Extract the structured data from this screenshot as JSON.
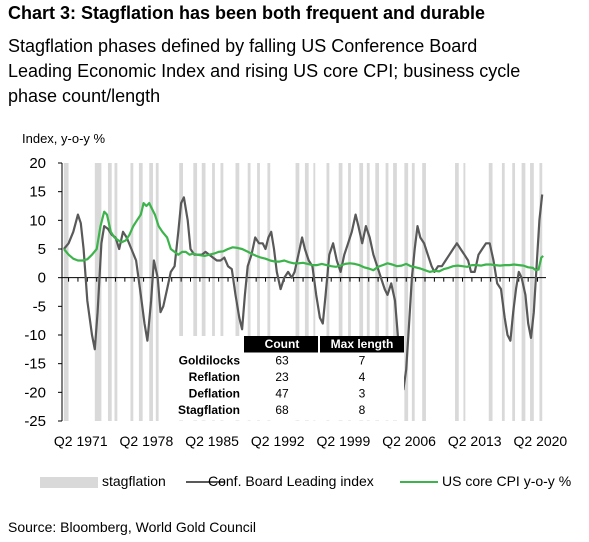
{
  "chart_data": {
    "type": "line",
    "title": "Chart 3: Stagflation has been both frequent and durable",
    "subtitle_lines": [
      "Stagflation phases defined by falling US Conference Board",
      "Leading Economic Index and rising US core CPI; business cycle",
      "phase count/length"
    ],
    "ylabel": "Index, y-o-y %",
    "ylim": [
      -25,
      20
    ],
    "yticks": [
      20,
      15,
      10,
      5,
      0,
      -5,
      -10,
      -15,
      -20,
      -25
    ],
    "xlim": [
      1969.3,
      2020.9
    ],
    "xtick_labels": [
      "Q2 1971",
      "Q2 1978",
      "Q2 1985",
      "Q2 1992",
      "Q2 1999",
      "Q2 2006",
      "Q2 2013",
      "Q2 2020"
    ],
    "xticks": [
      1971.3,
      1978.3,
      1985.3,
      1992.3,
      1999.3,
      2006.3,
      2013.3,
      2020.3
    ],
    "grid": false,
    "legend_position": "bottom",
    "legend": [
      {
        "label": "stagflation",
        "type": "band",
        "color": "#d9d9d9"
      },
      {
        "label": "Conf. Board Leading index",
        "type": "line",
        "color": "#595959"
      },
      {
        "label": "US core CPI y-o-y %",
        "type": "line",
        "color": "#3cb44b"
      }
    ],
    "stagflation_periods": [
      [
        1969.5,
        1970.0
      ],
      [
        1972.8,
        1973.5
      ],
      [
        1974.2,
        1974.6
      ],
      [
        1974.9,
        1975.2
      ],
      [
        1976.6,
        1976.9
      ],
      [
        1977.5,
        1977.9
      ],
      [
        1978.6,
        1979.0
      ],
      [
        1979.3,
        1979.6
      ],
      [
        1981.8,
        1982.2
      ],
      [
        1983.3,
        1983.7
      ],
      [
        1984.2,
        1984.6
      ],
      [
        1985.3,
        1985.6
      ],
      [
        1986.2,
        1986.5
      ],
      [
        1987.8,
        1988.2
      ],
      [
        1989.1,
        1989.4
      ],
      [
        1990.1,
        1990.4
      ],
      [
        1991.2,
        1991.5
      ],
      [
        1994.2,
        1994.6
      ],
      [
        1995.2,
        1995.6
      ],
      [
        1996.1,
        1996.3
      ],
      [
        1997.5,
        1997.8
      ],
      [
        1998.8,
        1999.2
      ],
      [
        1999.8,
        2000.1
      ],
      [
        2001.0,
        2001.4
      ],
      [
        2001.8,
        2002.1
      ],
      [
        2002.7,
        2003.1
      ],
      [
        2003.8,
        2004.1
      ],
      [
        2004.6,
        2005.0
      ],
      [
        2005.8,
        2006.2
      ],
      [
        2006.6,
        2006.9
      ],
      [
        2007.7,
        2008.1
      ],
      [
        2011.2,
        2011.6
      ],
      [
        2012.1,
        2012.3
      ],
      [
        2014.8,
        2015.2
      ],
      [
        2016.2,
        2016.5
      ],
      [
        2017.3,
        2017.6
      ],
      [
        2018.3,
        2018.7
      ],
      [
        2019.2,
        2019.6
      ],
      [
        2020.2,
        2020.5
      ]
    ],
    "series": [
      {
        "name": "Conf. Board Leading index",
        "color": "#595959",
        "points": [
          [
            1969.5,
            5
          ],
          [
            1970.0,
            6
          ],
          [
            1970.5,
            8
          ],
          [
            1971.0,
            11
          ],
          [
            1971.3,
            9.5
          ],
          [
            1971.6,
            5
          ],
          [
            1972.0,
            -4
          ],
          [
            1972.5,
            -10
          ],
          [
            1972.8,
            -12.5
          ],
          [
            1973.1,
            -6
          ],
          [
            1973.5,
            6
          ],
          [
            1973.8,
            9
          ],
          [
            1974.2,
            8.5
          ],
          [
            1974.6,
            7.5
          ],
          [
            1975.0,
            7
          ],
          [
            1975.4,
            5
          ],
          [
            1975.8,
            8
          ],
          [
            1976.2,
            7
          ],
          [
            1976.7,
            5
          ],
          [
            1977.2,
            3
          ],
          [
            1977.7,
            -3
          ],
          [
            1978.1,
            -8
          ],
          [
            1978.4,
            -11
          ],
          [
            1978.8,
            -4
          ],
          [
            1979.1,
            3
          ],
          [
            1979.5,
            0
          ],
          [
            1979.8,
            -6
          ],
          [
            1980.1,
            -5
          ],
          [
            1980.5,
            -2
          ],
          [
            1980.9,
            1
          ],
          [
            1981.3,
            2
          ],
          [
            1981.7,
            8
          ],
          [
            1982.0,
            13
          ],
          [
            1982.3,
            14
          ],
          [
            1982.7,
            10
          ],
          [
            1983.0,
            5
          ],
          [
            1983.4,
            4
          ],
          [
            1983.8,
            4
          ],
          [
            1984.2,
            4
          ],
          [
            1984.6,
            4.5
          ],
          [
            1985.0,
            4
          ],
          [
            1985.4,
            3.5
          ],
          [
            1985.8,
            3
          ],
          [
            1986.2,
            3
          ],
          [
            1986.6,
            3.5
          ],
          [
            1987.0,
            2
          ],
          [
            1987.4,
            1.5
          ],
          [
            1987.8,
            -3
          ],
          [
            1988.2,
            -7
          ],
          [
            1988.5,
            -9
          ],
          [
            1988.8,
            -3
          ],
          [
            1989.1,
            2
          ],
          [
            1989.5,
            4
          ],
          [
            1989.9,
            7
          ],
          [
            1990.3,
            6
          ],
          [
            1990.7,
            6
          ],
          [
            1991.0,
            5
          ],
          [
            1991.3,
            7
          ],
          [
            1991.6,
            8
          ],
          [
            1991.9,
            5
          ],
          [
            1992.2,
            1
          ],
          [
            1992.6,
            -2
          ],
          [
            1993.0,
            0
          ],
          [
            1993.4,
            1
          ],
          [
            1993.8,
            0
          ],
          [
            1994.1,
            1
          ],
          [
            1994.5,
            4
          ],
          [
            1994.9,
            7
          ],
          [
            1995.2,
            5
          ],
          [
            1995.6,
            3
          ],
          [
            1996.0,
            2
          ],
          [
            1996.4,
            -3
          ],
          [
            1996.8,
            -7
          ],
          [
            1997.1,
            -8
          ],
          [
            1997.4,
            -3
          ],
          [
            1997.8,
            4
          ],
          [
            1998.2,
            6
          ],
          [
            1998.6,
            3
          ],
          [
            1999.0,
            1
          ],
          [
            1999.4,
            4
          ],
          [
            1999.8,
            6
          ],
          [
            2000.2,
            8
          ],
          [
            2000.6,
            11
          ],
          [
            2000.9,
            9
          ],
          [
            2001.3,
            6
          ],
          [
            2001.7,
            9
          ],
          [
            2002.1,
            7
          ],
          [
            2002.5,
            4
          ],
          [
            2002.9,
            2
          ],
          [
            2003.3,
            0
          ],
          [
            2003.7,
            -2
          ],
          [
            2004.0,
            -3
          ],
          [
            2004.4,
            -1
          ],
          [
            2004.8,
            -4
          ],
          [
            2005.1,
            -10
          ],
          [
            2005.4,
            -17
          ],
          [
            2005.7,
            -19.5
          ],
          [
            2006.0,
            -16
          ],
          [
            2006.3,
            -8
          ],
          [
            2006.6,
            0
          ],
          [
            2006.9,
            5
          ],
          [
            2007.2,
            9
          ],
          [
            2007.5,
            7
          ],
          [
            2007.9,
            6
          ],
          [
            2008.3,
            4
          ],
          [
            2008.7,
            2
          ],
          [
            2009.0,
            1
          ],
          [
            2009.4,
            2
          ],
          [
            2009.8,
            2
          ],
          [
            2010.2,
            3
          ],
          [
            2010.6,
            4
          ],
          [
            2011.0,
            5
          ],
          [
            2011.4,
            6
          ],
          [
            2011.8,
            5
          ],
          [
            2012.2,
            4
          ],
          [
            2012.6,
            3
          ],
          [
            2012.9,
            1
          ],
          [
            2013.3,
            1
          ],
          [
            2013.7,
            4
          ],
          [
            2014.1,
            5
          ],
          [
            2014.5,
            6
          ],
          [
            2014.9,
            6
          ],
          [
            2015.3,
            3
          ],
          [
            2015.7,
            -1
          ],
          [
            2016.1,
            -2
          ],
          [
            2016.5,
            -7
          ],
          [
            2016.8,
            -10
          ],
          [
            2017.1,
            -11
          ],
          [
            2017.4,
            -6
          ],
          [
            2017.7,
            -2
          ],
          [
            2018.0,
            1
          ],
          [
            2018.3,
            0
          ],
          [
            2018.7,
            -3
          ],
          [
            2019.0,
            -8
          ],
          [
            2019.3,
            -10.5
          ],
          [
            2019.6,
            -6
          ],
          [
            2019.9,
            2
          ],
          [
            2020.2,
            10
          ],
          [
            2020.5,
            14.5
          ]
        ]
      },
      {
        "name": "US core CPI y-o-y %",
        "color": "#3cb44b",
        "points": [
          [
            1969.5,
            5
          ],
          [
            1970.0,
            4
          ],
          [
            1970.5,
            3.3
          ],
          [
            1971.0,
            3
          ],
          [
            1971.5,
            3
          ],
          [
            1972.0,
            3.2
          ],
          [
            1972.5,
            4
          ],
          [
            1973.0,
            5
          ],
          [
            1973.4,
            9
          ],
          [
            1973.8,
            11.5
          ],
          [
            1974.1,
            11
          ],
          [
            1974.5,
            8
          ],
          [
            1974.9,
            7
          ],
          [
            1975.3,
            6.5
          ],
          [
            1975.7,
            6.2
          ],
          [
            1976.1,
            6.5
          ],
          [
            1976.5,
            7.5
          ],
          [
            1976.9,
            9
          ],
          [
            1977.3,
            10
          ],
          [
            1977.7,
            11
          ],
          [
            1978.0,
            13
          ],
          [
            1978.3,
            12.5
          ],
          [
            1978.6,
            13
          ],
          [
            1978.9,
            12
          ],
          [
            1979.2,
            11
          ],
          [
            1979.6,
            9
          ],
          [
            1980.0,
            8
          ],
          [
            1980.5,
            7
          ],
          [
            1980.9,
            5
          ],
          [
            1981.3,
            4.5
          ],
          [
            1981.7,
            4
          ],
          [
            1982.1,
            4.5
          ],
          [
            1982.5,
            4.5
          ],
          [
            1982.9,
            4
          ],
          [
            1983.3,
            4.2
          ],
          [
            1983.7,
            4
          ],
          [
            1984.1,
            3.9
          ],
          [
            1984.5,
            3.8
          ],
          [
            1985.0,
            4
          ],
          [
            1985.5,
            4.2
          ],
          [
            1986.0,
            4.5
          ],
          [
            1986.5,
            4.6
          ],
          [
            1987.0,
            5
          ],
          [
            1987.5,
            5.3
          ],
          [
            1988.0,
            5.2
          ],
          [
            1988.5,
            5
          ],
          [
            1989.0,
            4.6
          ],
          [
            1989.5,
            4.2
          ],
          [
            1990.0,
            3.8
          ],
          [
            1990.5,
            3.5
          ],
          [
            1991.0,
            3.3
          ],
          [
            1991.5,
            3
          ],
          [
            1992.0,
            2.8
          ],
          [
            1992.5,
            2.8
          ],
          [
            1993.0,
            3
          ],
          [
            1993.5,
            2.7
          ],
          [
            1994.0,
            2.5
          ],
          [
            1994.5,
            2.5
          ],
          [
            1995.0,
            2.6
          ],
          [
            1995.5,
            2.4
          ],
          [
            1996.0,
            2.2
          ],
          [
            1996.5,
            2.2
          ],
          [
            1997.0,
            2.4
          ],
          [
            1997.5,
            2.2
          ],
          [
            1998.0,
            2
          ],
          [
            1998.5,
            1.9
          ],
          [
            1999.0,
            2.1
          ],
          [
            1999.5,
            2.4
          ],
          [
            2000.0,
            2.5
          ],
          [
            2000.5,
            2.4
          ],
          [
            2001.0,
            2.2
          ],
          [
            2001.5,
            1.8
          ],
          [
            2002.0,
            1.6
          ],
          [
            2002.5,
            1.3
          ],
          [
            2003.0,
            1.9
          ],
          [
            2003.5,
            2.2
          ],
          [
            2004.0,
            2.5
          ],
          [
            2004.5,
            2.3
          ],
          [
            2005.0,
            2
          ],
          [
            2005.5,
            2.1
          ],
          [
            2006.0,
            2.4
          ],
          [
            2006.5,
            2
          ],
          [
            2007.0,
            1.8
          ],
          [
            2007.5,
            1.6
          ],
          [
            2008.0,
            1.3
          ],
          [
            2008.5,
            1
          ],
          [
            2009.0,
            1.2
          ],
          [
            2009.5,
            1.1
          ],
          [
            2010.0,
            1.5
          ],
          [
            2010.5,
            1.7
          ],
          [
            2011.0,
            2
          ],
          [
            2011.5,
            2.1
          ],
          [
            2012.0,
            2
          ],
          [
            2012.5,
            1.9
          ],
          [
            2013.0,
            2.2
          ],
          [
            2013.5,
            2.2
          ],
          [
            2014.0,
            2.1
          ],
          [
            2014.5,
            2.3
          ],
          [
            2015.0,
            2.3
          ],
          [
            2015.5,
            2.2
          ],
          [
            2016.0,
            2.1
          ],
          [
            2016.5,
            2.2
          ],
          [
            2017.0,
            2.2
          ],
          [
            2017.5,
            2.3
          ],
          [
            2018.0,
            2.2
          ],
          [
            2018.5,
            2.1
          ],
          [
            2019.0,
            1.8
          ],
          [
            2019.5,
            1.7
          ],
          [
            2019.8,
            1.3
          ],
          [
            2020.1,
            1.4
          ],
          [
            2020.4,
            3.5
          ],
          [
            2020.6,
            3.8
          ]
        ]
      }
    ],
    "table": {
      "headers": [
        "",
        "Count",
        "Max length"
      ],
      "rows": [
        [
          "Goldilocks",
          "63",
          "7"
        ],
        [
          "Reflation",
          "23",
          "4"
        ],
        [
          "Deflation",
          "47",
          "3"
        ],
        [
          "Stagflation",
          "68",
          "8"
        ]
      ]
    }
  },
  "source": "Source: Bloomberg, World Gold Council"
}
